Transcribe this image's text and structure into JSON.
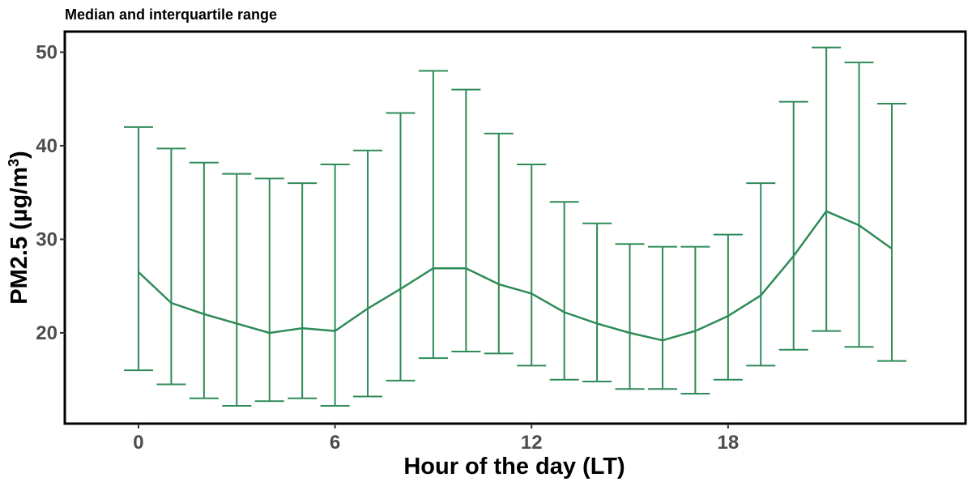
{
  "chart_data": {
    "type": "line",
    "title": "Median and interquartile range",
    "xlabel": "Hour of the day (LT)",
    "ylabel_parts": [
      "PM2.5 (µg/m",
      "3",
      ")"
    ],
    "x": [
      0,
      1,
      2,
      3,
      4,
      5,
      6,
      7,
      8,
      9,
      10,
      11,
      12,
      13,
      14,
      15,
      16,
      17,
      18,
      19,
      20,
      21,
      22,
      23
    ],
    "median": [
      26.5,
      23.2,
      22.0,
      21.0,
      20.0,
      20.5,
      20.2,
      22.6,
      24.7,
      26.9,
      26.9,
      25.2,
      24.2,
      22.2,
      21.0,
      20.0,
      19.2,
      20.2,
      21.8,
      24.0,
      28.2,
      33.0,
      31.5,
      29.0
    ],
    "q1": [
      16.0,
      14.5,
      13.0,
      12.2,
      12.7,
      13.0,
      12.2,
      13.2,
      14.9,
      17.3,
      18.0,
      17.8,
      16.5,
      15.0,
      14.8,
      14.0,
      14.0,
      13.5,
      15.0,
      16.5,
      18.2,
      20.2,
      18.5,
      17.0
    ],
    "q3": [
      42.0,
      39.7,
      38.2,
      37.0,
      36.5,
      36.0,
      38.0,
      39.5,
      43.5,
      48.0,
      46.0,
      41.3,
      38.0,
      34.0,
      31.7,
      29.5,
      29.2,
      29.2,
      30.5,
      36.0,
      44.7,
      50.5,
      48.9,
      44.5
    ],
    "xticks": [
      0,
      6,
      12,
      18
    ],
    "yticks": [
      20,
      30,
      40,
      50
    ],
    "xlim": [
      -2.25,
      25.25
    ],
    "ylim": [
      10.3,
      52.2
    ],
    "color": "#2e8b57",
    "grid": false,
    "legend": "none"
  }
}
